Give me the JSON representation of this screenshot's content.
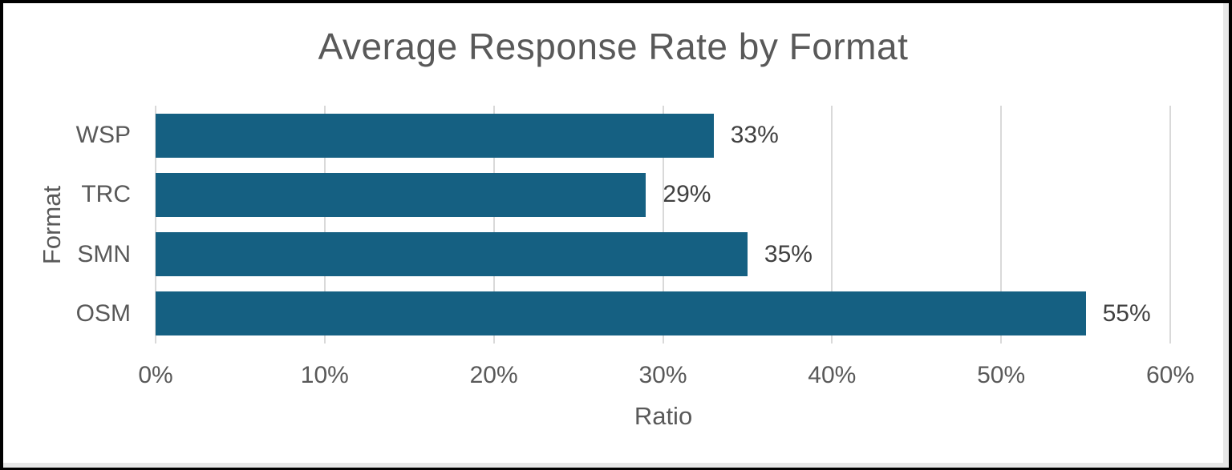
{
  "window": {
    "border_color": "#000000",
    "edge_color": "#e7e7e7",
    "background": "#ffffff"
  },
  "chart_data": {
    "type": "bar",
    "orientation": "horizontal",
    "title": "Average Response Rate by Format",
    "xlabel": "Ratio",
    "ylabel": "Format",
    "categories": [
      "WSP",
      "TRC",
      "SMN",
      "OSM"
    ],
    "values": [
      33,
      29,
      35,
      55
    ],
    "data_labels": [
      "33%",
      "29%",
      "35%",
      "55%"
    ],
    "x_ticks": [
      "0%",
      "10%",
      "20%",
      "30%",
      "40%",
      "50%",
      "60%"
    ],
    "xlim": [
      0,
      60
    ],
    "grid": true,
    "legend": "none",
    "bar_color": "#156082",
    "gridline_color": "#D9D9D9",
    "text_color": "#595959",
    "data_label_color": "#404040"
  }
}
